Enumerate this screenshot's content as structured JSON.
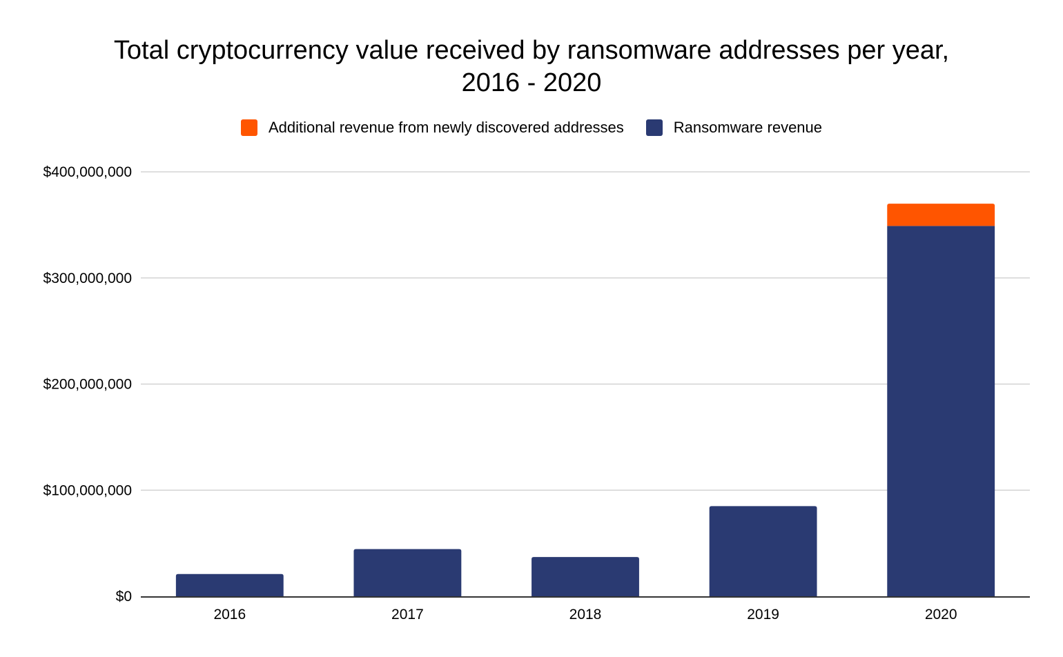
{
  "chart_data": {
    "type": "bar",
    "stacked": true,
    "title_line1": "Total cryptocurrency value received by ransomware addresses per year,",
    "title_line2": "2016 - 2020",
    "xlabel": "",
    "ylabel": "",
    "categories": [
      "2016",
      "2017",
      "2018",
      "2019",
      "2020"
    ],
    "series": [
      {
        "name": "Ransomware revenue",
        "color": "#2a3a72",
        "values": [
          21000000,
          44500000,
          37000000,
          85000000,
          349000000
        ]
      },
      {
        "name": "Additional revenue from newly discovered addresses",
        "color": "#ff5500",
        "values": [
          0,
          0,
          0,
          0,
          21000000
        ]
      }
    ],
    "ylim": [
      0,
      400000000
    ],
    "yticks": [
      0,
      100000000,
      200000000,
      300000000,
      400000000
    ],
    "ytick_labels": [
      "$0",
      "$100,000,000",
      "$200,000,000",
      "$300,000,000",
      "$400,000,000"
    ],
    "grid": true,
    "legend": {
      "position": "top",
      "entries": [
        {
          "label": "Additional revenue from newly discovered addresses",
          "color": "#ff5500"
        },
        {
          "label": "Ransomware revenue",
          "color": "#2a3a72"
        }
      ]
    }
  }
}
